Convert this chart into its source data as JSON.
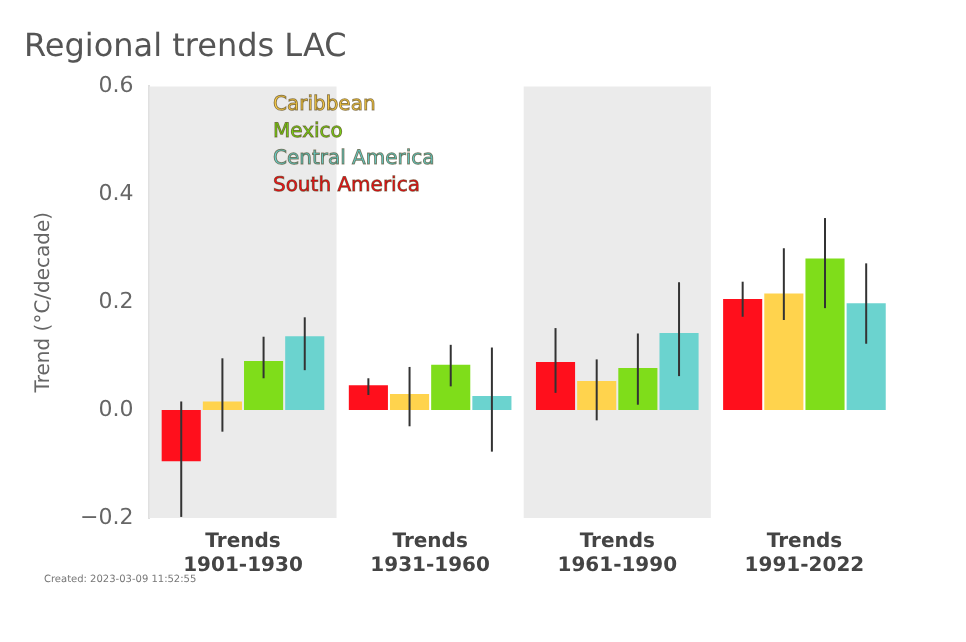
{
  "chart_data": {
    "type": "bar",
    "title": "Regional trends LAC",
    "ylabel": "Trend (°C/decade)",
    "categories": [
      "Trends\n1901-1930",
      "Trends\n1931-1960",
      "Trends\n1961-1990",
      "Trends\n1991-2022"
    ],
    "series": [
      {
        "name": "South America",
        "color": "#ff0f1c",
        "values": [
          -0.095,
          0.046,
          0.089,
          0.206
        ],
        "errors": [
          [
            -0.198,
            0.016
          ],
          [
            0.028,
            0.059
          ],
          [
            0.032,
            0.152
          ],
          [
            0.173,
            0.238
          ]
        ]
      },
      {
        "name": "Caribbean",
        "color": "#ffd34d",
        "values": [
          0.016,
          0.03,
          0.054,
          0.216
        ],
        "errors": [
          [
            -0.04,
            0.096
          ],
          [
            -0.03,
            0.08
          ],
          [
            -0.019,
            0.094
          ],
          [
            0.167,
            0.3
          ]
        ]
      },
      {
        "name": "Mexico",
        "color": "#7fdd1a",
        "values": [
          0.091,
          0.084,
          0.078,
          0.281
        ],
        "errors": [
          [
            0.059,
            0.136
          ],
          [
            0.044,
            0.121
          ],
          [
            0.01,
            0.142
          ],
          [
            0.189,
            0.356
          ]
        ]
      },
      {
        "name": "Central America",
        "color": "#6bd3cf",
        "values": [
          0.137,
          0.026,
          0.143,
          0.198
        ],
        "errors": [
          [
            0.074,
            0.172
          ],
          [
            -0.077,
            0.116
          ],
          [
            0.063,
            0.237
          ],
          [
            0.123,
            0.272
          ]
        ]
      }
    ],
    "ylim": [
      -0.2,
      0.6
    ],
    "yticks": [
      {
        "value": -0.2,
        "label": "−0.2"
      },
      {
        "value": 0,
        "label": "0.0"
      },
      0.2,
      0.4,
      0.6
    ],
    "bands": [
      {
        "axis": "x",
        "from": "Trends\n1901-1930",
        "to": "Trends\n1901-1930",
        "color": "#ebebeb"
      },
      {
        "axis": "x",
        "from": "Trends\n1961-1990",
        "to": "Trends\n1961-1990",
        "color": "#ebebeb"
      }
    ],
    "legend": "top left",
    "grid": false,
    "annotations": [
      "Created: 2023-03-09 11:52:55"
    ]
  }
}
